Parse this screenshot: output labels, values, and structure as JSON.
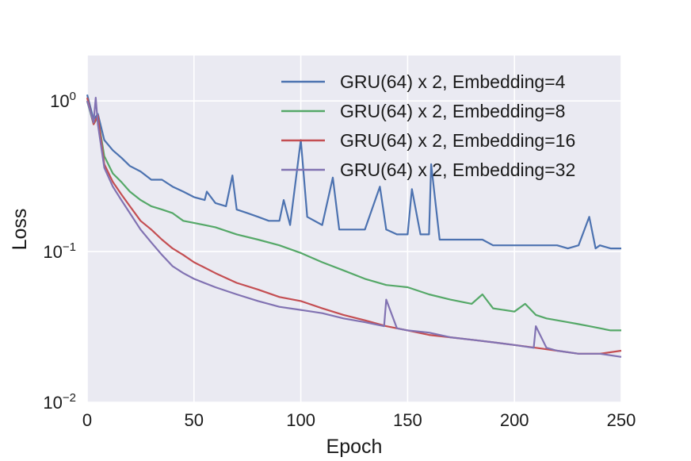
{
  "chart_data": {
    "type": "line",
    "title": "",
    "xlabel": "Epoch",
    "ylabel": "Loss",
    "xlim": [
      0,
      250
    ],
    "ylim": [
      0.01,
      2.0
    ],
    "yscale": "log",
    "grid": true,
    "legend_position": "top-right",
    "x_ticks": [
      "0",
      "50",
      "100",
      "150",
      "200",
      "250"
    ],
    "y_ticks": [
      {
        "base": "10",
        "exp": "0"
      },
      {
        "base": "10",
        "exp": "−1"
      },
      {
        "base": "10",
        "exp": "−2"
      }
    ],
    "colors": {
      "background": "#EAEAF2",
      "grid": "#FFFFFF",
      "series": [
        "#4C72B0",
        "#55A868",
        "#C44E52",
        "#8172B2"
      ]
    },
    "series": [
      {
        "name": "GRU(64) x 2, Embedding=4",
        "x": [
          0,
          3,
          5,
          8,
          12,
          16,
          20,
          25,
          30,
          35,
          40,
          45,
          50,
          55,
          56,
          60,
          65,
          68,
          70,
          75,
          80,
          85,
          90,
          92,
          95,
          100,
          103,
          110,
          115,
          118,
          125,
          130,
          137,
          140,
          145,
          150,
          152,
          156,
          160,
          161,
          165,
          170,
          175,
          180,
          185,
          190,
          195,
          200,
          205,
          210,
          215,
          220,
          225,
          230,
          235,
          238,
          240,
          245,
          250
        ],
        "y": [
          1.1,
          0.75,
          0.82,
          0.55,
          0.47,
          0.42,
          0.37,
          0.34,
          0.3,
          0.3,
          0.27,
          0.25,
          0.23,
          0.22,
          0.25,
          0.21,
          0.2,
          0.32,
          0.19,
          0.18,
          0.17,
          0.16,
          0.16,
          0.22,
          0.15,
          0.55,
          0.17,
          0.15,
          0.31,
          0.14,
          0.14,
          0.14,
          0.27,
          0.14,
          0.13,
          0.13,
          0.26,
          0.13,
          0.13,
          0.38,
          0.12,
          0.12,
          0.12,
          0.12,
          0.12,
          0.11,
          0.11,
          0.11,
          0.11,
          0.11,
          0.11,
          0.11,
          0.105,
          0.11,
          0.17,
          0.105,
          0.11,
          0.105,
          0.105
        ]
      },
      {
        "name": "GRU(64) x 2, Embedding=8",
        "x": [
          0,
          3,
          5,
          8,
          12,
          16,
          20,
          25,
          30,
          35,
          40,
          45,
          50,
          60,
          70,
          80,
          90,
          100,
          110,
          120,
          130,
          140,
          150,
          160,
          170,
          180,
          185,
          190,
          200,
          205,
          210,
          215,
          220,
          225,
          230,
          235,
          240,
          245,
          250
        ],
        "y": [
          1.0,
          0.7,
          0.78,
          0.43,
          0.33,
          0.29,
          0.25,
          0.22,
          0.2,
          0.19,
          0.18,
          0.16,
          0.155,
          0.145,
          0.13,
          0.12,
          0.11,
          0.098,
          0.085,
          0.075,
          0.066,
          0.06,
          0.058,
          0.052,
          0.048,
          0.045,
          0.052,
          0.042,
          0.04,
          0.045,
          0.038,
          0.036,
          0.035,
          0.034,
          0.033,
          0.032,
          0.031,
          0.03,
          0.03
        ]
      },
      {
        "name": "GRU(64) x 2, Embedding=16",
        "x": [
          0,
          3,
          5,
          8,
          12,
          16,
          20,
          25,
          30,
          35,
          40,
          45,
          50,
          60,
          70,
          80,
          90,
          100,
          110,
          120,
          130,
          140,
          150,
          160,
          170,
          180,
          190,
          200,
          210,
          220,
          230,
          240,
          250
        ],
        "y": [
          1.05,
          0.7,
          0.8,
          0.38,
          0.29,
          0.24,
          0.2,
          0.16,
          0.14,
          0.12,
          0.105,
          0.095,
          0.085,
          0.072,
          0.062,
          0.056,
          0.05,
          0.047,
          0.042,
          0.038,
          0.035,
          0.032,
          0.03,
          0.028,
          0.027,
          0.026,
          0.025,
          0.024,
          0.023,
          0.022,
          0.021,
          0.021,
          0.022
        ]
      },
      {
        "name": "GRU(64) x 2, Embedding=32",
        "x": [
          0,
          3,
          4,
          5,
          8,
          12,
          16,
          20,
          25,
          30,
          35,
          40,
          45,
          50,
          60,
          70,
          80,
          90,
          100,
          110,
          120,
          130,
          139,
          140,
          145,
          150,
          160,
          170,
          180,
          190,
          200,
          209,
          210,
          215,
          220,
          230,
          240,
          250
        ],
        "y": [
          1.0,
          0.72,
          1.05,
          0.7,
          0.36,
          0.27,
          0.22,
          0.18,
          0.14,
          0.115,
          0.095,
          0.08,
          0.072,
          0.066,
          0.058,
          0.052,
          0.047,
          0.043,
          0.041,
          0.039,
          0.036,
          0.034,
          0.032,
          0.048,
          0.031,
          0.03,
          0.029,
          0.027,
          0.026,
          0.025,
          0.024,
          0.023,
          0.032,
          0.023,
          0.022,
          0.021,
          0.021,
          0.02
        ]
      }
    ]
  }
}
